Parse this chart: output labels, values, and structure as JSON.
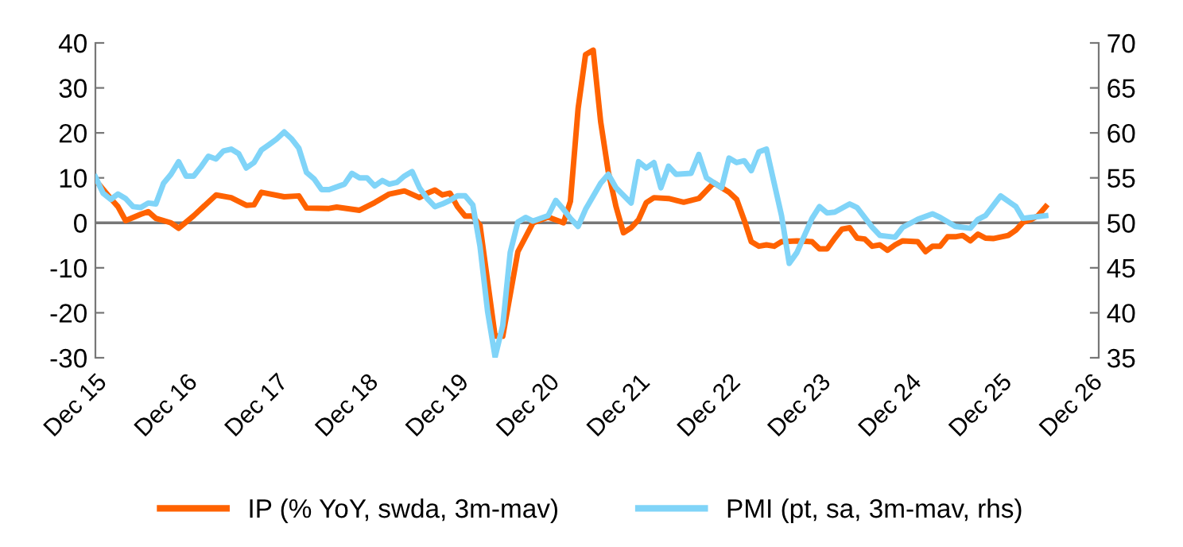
{
  "chart_data": {
    "type": "line",
    "xlim": [
      "2015-12",
      "2027-01"
    ],
    "xticks": [
      {
        "value": "2015-12",
        "label": "Dec 15"
      },
      {
        "value": "2016-12",
        "label": "Dec 16"
      },
      {
        "value": "2017-12",
        "label": "Dec 17"
      },
      {
        "value": "2018-12",
        "label": "Dec 18"
      },
      {
        "value": "2019-12",
        "label": "Dec 19"
      },
      {
        "value": "2020-12",
        "label": "Dec 20"
      },
      {
        "value": "2021-12",
        "label": "Dec 21"
      },
      {
        "value": "2022-12",
        "label": "Dec 22"
      },
      {
        "value": "2023-12",
        "label": "Dec 23"
      },
      {
        "value": "2024-12",
        "label": "Dec 24"
      },
      {
        "value": "2025-12",
        "label": "Dec 25"
      },
      {
        "value": "2026-12",
        "label": "Dec 26"
      }
    ],
    "ylim": [
      -30,
      40
    ],
    "yticks": [
      -30,
      -20,
      -10,
      0,
      10,
      20,
      30,
      40
    ],
    "y2lim": [
      35,
      70
    ],
    "y2ticks": [
      35,
      40,
      45,
      50,
      55,
      60,
      65,
      70
    ],
    "ref_lines": [
      {
        "axis": "y",
        "value": 0,
        "color": "#777777"
      }
    ],
    "legend": "bottom",
    "grid": false,
    "marker": "none",
    "line_style": "solid",
    "series": [
      {
        "name": "IP (% YoY, swda, 3m-mav)",
        "color": "#ff6200",
        "x": [
          "2015-12",
          "2016-02",
          "2016-03",
          "2016-04",
          "2016-06",
          "2016-07",
          "2016-08",
          "2016-10",
          "2016-11",
          "2017-01",
          "2017-04",
          "2017-06",
          "2017-08",
          "2017-09",
          "2017-10",
          "2018-01",
          "2018-03",
          "2018-04",
          "2018-07",
          "2018-08",
          "2018-11",
          "2019-01",
          "2019-03",
          "2019-05",
          "2019-07",
          "2019-08",
          "2019-09",
          "2019-10",
          "2019-11",
          "2019-12",
          "2020-01",
          "2020-02",
          "2020-03",
          "2020-05",
          "2020-06",
          "2020-08",
          "2020-10",
          "2020-12",
          "2021-02",
          "2021-03",
          "2021-04",
          "2021-05",
          "2021-06",
          "2021-07",
          "2021-08",
          "2021-09",
          "2021-10",
          "2021-11",
          "2021-12",
          "2022-01",
          "2022-02",
          "2022-04",
          "2022-06",
          "2022-08",
          "2022-10",
          "2022-12",
          "2023-01",
          "2023-02",
          "2023-03",
          "2023-04",
          "2023-05",
          "2023-06",
          "2023-07",
          "2023-09",
          "2023-11",
          "2023-12",
          "2024-01",
          "2024-02",
          "2024-03",
          "2024-04",
          "2024-05",
          "2024-06",
          "2024-07",
          "2024-08",
          "2024-09",
          "2024-10",
          "2024-11",
          "2025-01",
          "2025-02",
          "2025-03",
          "2025-04",
          "2025-05",
          "2025-06",
          "2025-07",
          "2025-08",
          "2025-09",
          "2025-10",
          "2025-11",
          "2026-01",
          "2026-02",
          "2026-03",
          "2026-04",
          "2026-05",
          "2026-06"
        ],
        "values": [
          9.5,
          5.4,
          3.6,
          0.5,
          1.9,
          2.5,
          1.0,
          0.0,
          -1.2,
          1.6,
          6.2,
          5.6,
          3.9,
          4.0,
          6.8,
          5.8,
          6.0,
          3.3,
          3.2,
          3.5,
          2.8,
          4.5,
          6.4,
          7.1,
          5.6,
          6.6,
          7.3,
          6.2,
          6.6,
          3.6,
          1.5,
          1.5,
          -0.5,
          -25.2,
          -25.2,
          -6.4,
          0.0,
          1.3,
          0.0,
          4.8,
          25.4,
          37.4,
          38.4,
          22.5,
          11.3,
          3.6,
          -2.2,
          -1.1,
          0.7,
          4.5,
          5.6,
          5.4,
          4.6,
          5.4,
          8.9,
          6.8,
          5.2,
          0.5,
          -4.2,
          -5.2,
          -4.9,
          -5.2,
          -4.2,
          -4.0,
          -4.2,
          -5.8,
          -5.8,
          -3.4,
          -1.4,
          -1.1,
          -3.4,
          -3.6,
          -5.2,
          -4.9,
          -6.1,
          -4.9,
          -4.0,
          -4.2,
          -6.4,
          -5.2,
          -5.2,
          -3.1,
          -3.1,
          -2.8,
          -4.0,
          -2.5,
          -3.4,
          -3.5,
          -2.8,
          -1.6,
          0.1,
          0.7,
          1.6,
          3.6
        ]
      },
      {
        "name": "PMI (pt, sa, 3m-mav, rhs)",
        "color": "#80d4f8",
        "axis": "y2",
        "x": [
          "2015-12",
          "2016-01",
          "2016-02",
          "2016-03",
          "2016-04",
          "2016-05",
          "2016-06",
          "2016-07",
          "2016-08",
          "2016-09",
          "2016-10",
          "2016-11",
          "2016-12",
          "2017-01",
          "2017-02",
          "2017-03",
          "2017-04",
          "2017-05",
          "2017-06",
          "2017-07",
          "2017-08",
          "2017-09",
          "2017-10",
          "2017-11",
          "2017-12",
          "2018-01",
          "2018-02",
          "2018-03",
          "2018-04",
          "2018-05",
          "2018-06",
          "2018-07",
          "2018-09",
          "2018-10",
          "2018-11",
          "2018-12",
          "2019-01",
          "2019-02",
          "2019-03",
          "2019-04",
          "2019-05",
          "2019-06",
          "2019-07",
          "2019-08",
          "2019-09",
          "2019-10",
          "2019-11",
          "2019-12",
          "2020-01",
          "2020-02",
          "2020-03",
          "2020-04",
          "2020-05",
          "2020-06",
          "2020-07",
          "2020-08",
          "2020-09",
          "2020-10",
          "2020-12",
          "2021-01",
          "2021-02",
          "2021-03",
          "2021-04",
          "2021-05",
          "2021-07",
          "2021-08",
          "2021-09",
          "2021-11",
          "2021-12",
          "2022-01",
          "2022-02",
          "2022-03",
          "2022-04",
          "2022-05",
          "2022-07",
          "2022-08",
          "2022-09",
          "2022-11",
          "2022-12",
          "2023-01",
          "2023-02",
          "2023-03",
          "2023-04",
          "2023-05",
          "2023-07",
          "2023-08",
          "2023-09",
          "2023-11",
          "2023-12",
          "2024-01",
          "2024-02",
          "2024-04",
          "2024-05",
          "2024-07",
          "2024-08",
          "2024-10",
          "2024-11",
          "2025-01",
          "2025-03",
          "2025-04",
          "2025-06",
          "2025-08",
          "2025-09",
          "2025-10",
          "2025-12",
          "2026-02",
          "2026-03",
          "2026-04",
          "2026-06"
        ],
        "values": [
          55.1,
          53.3,
          52.6,
          53.2,
          52.7,
          51.8,
          51.7,
          52.2,
          52.1,
          54.4,
          55.4,
          56.8,
          55.2,
          55.2,
          56.3,
          57.4,
          57.1,
          58.0,
          58.2,
          57.7,
          56.1,
          56.7,
          58.1,
          58.7,
          59.3,
          60.1,
          59.3,
          58.3,
          55.6,
          54.9,
          53.7,
          53.7,
          54.3,
          55.5,
          55.0,
          55.0,
          54.1,
          54.7,
          54.3,
          54.5,
          55.2,
          55.7,
          53.9,
          52.7,
          51.8,
          52.1,
          52.5,
          53.0,
          53.0,
          52.0,
          47.4,
          40.1,
          35.1,
          38.6,
          46.7,
          50.1,
          50.6,
          50.2,
          50.8,
          52.5,
          51.5,
          50.5,
          49.6,
          51.5,
          54.4,
          55.4,
          53.9,
          52.2,
          56.8,
          56.1,
          56.7,
          53.9,
          56.3,
          55.4,
          55.5,
          57.6,
          55.0,
          53.9,
          57.2,
          56.7,
          56.9,
          55.8,
          57.9,
          58.2,
          50.8,
          45.5,
          46.7,
          50.5,
          51.8,
          51.1,
          51.2,
          52.1,
          51.7,
          49.5,
          48.6,
          48.4,
          49.5,
          50.4,
          51.0,
          50.6,
          49.6,
          49.4,
          50.4,
          50.8,
          53.0,
          51.8,
          50.5,
          50.6,
          50.8
        ]
      }
    ]
  }
}
